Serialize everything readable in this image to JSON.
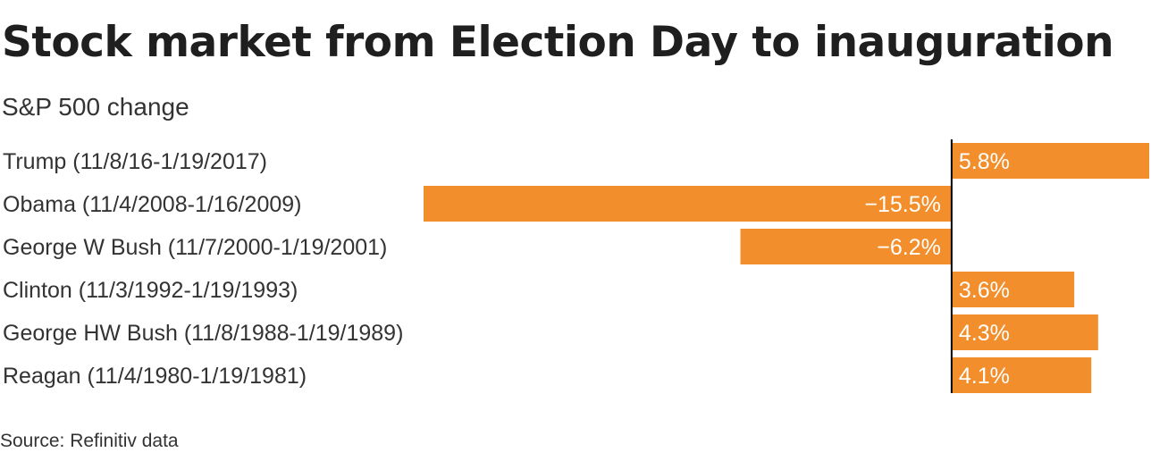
{
  "title": "Stock market from Election Day to inauguration",
  "subtitle": "S&P 500 change",
  "source": "Source: Refinitiv data",
  "colors": {
    "bar": "#f28e2b",
    "bar_label": "#ffffff",
    "axis": "#000000",
    "text": "#333333"
  },
  "chart_data": {
    "type": "bar",
    "orientation": "horizontal",
    "categories": [
      "Trump (11/8/16-1/19/2017)",
      "Obama (11/4/2008-1/16/2009)",
      "George W Bush (11/7/2000-1/19/2001)",
      "Clinton (11/3/1992-1/19/1993)",
      "George HW Bush (11/8/1988-1/19/1989)",
      "Reagan (11/4/1980-1/19/1981)"
    ],
    "values": [
      5.8,
      -15.5,
      -6.2,
      3.6,
      4.3,
      4.1
    ],
    "value_labels": [
      "5.8%",
      "−15.5%",
      "−6.2%",
      "3.6%",
      "4.3%",
      "4.1%"
    ],
    "xlim": [
      -15.5,
      5.8
    ],
    "grid": false,
    "legend": "none"
  }
}
